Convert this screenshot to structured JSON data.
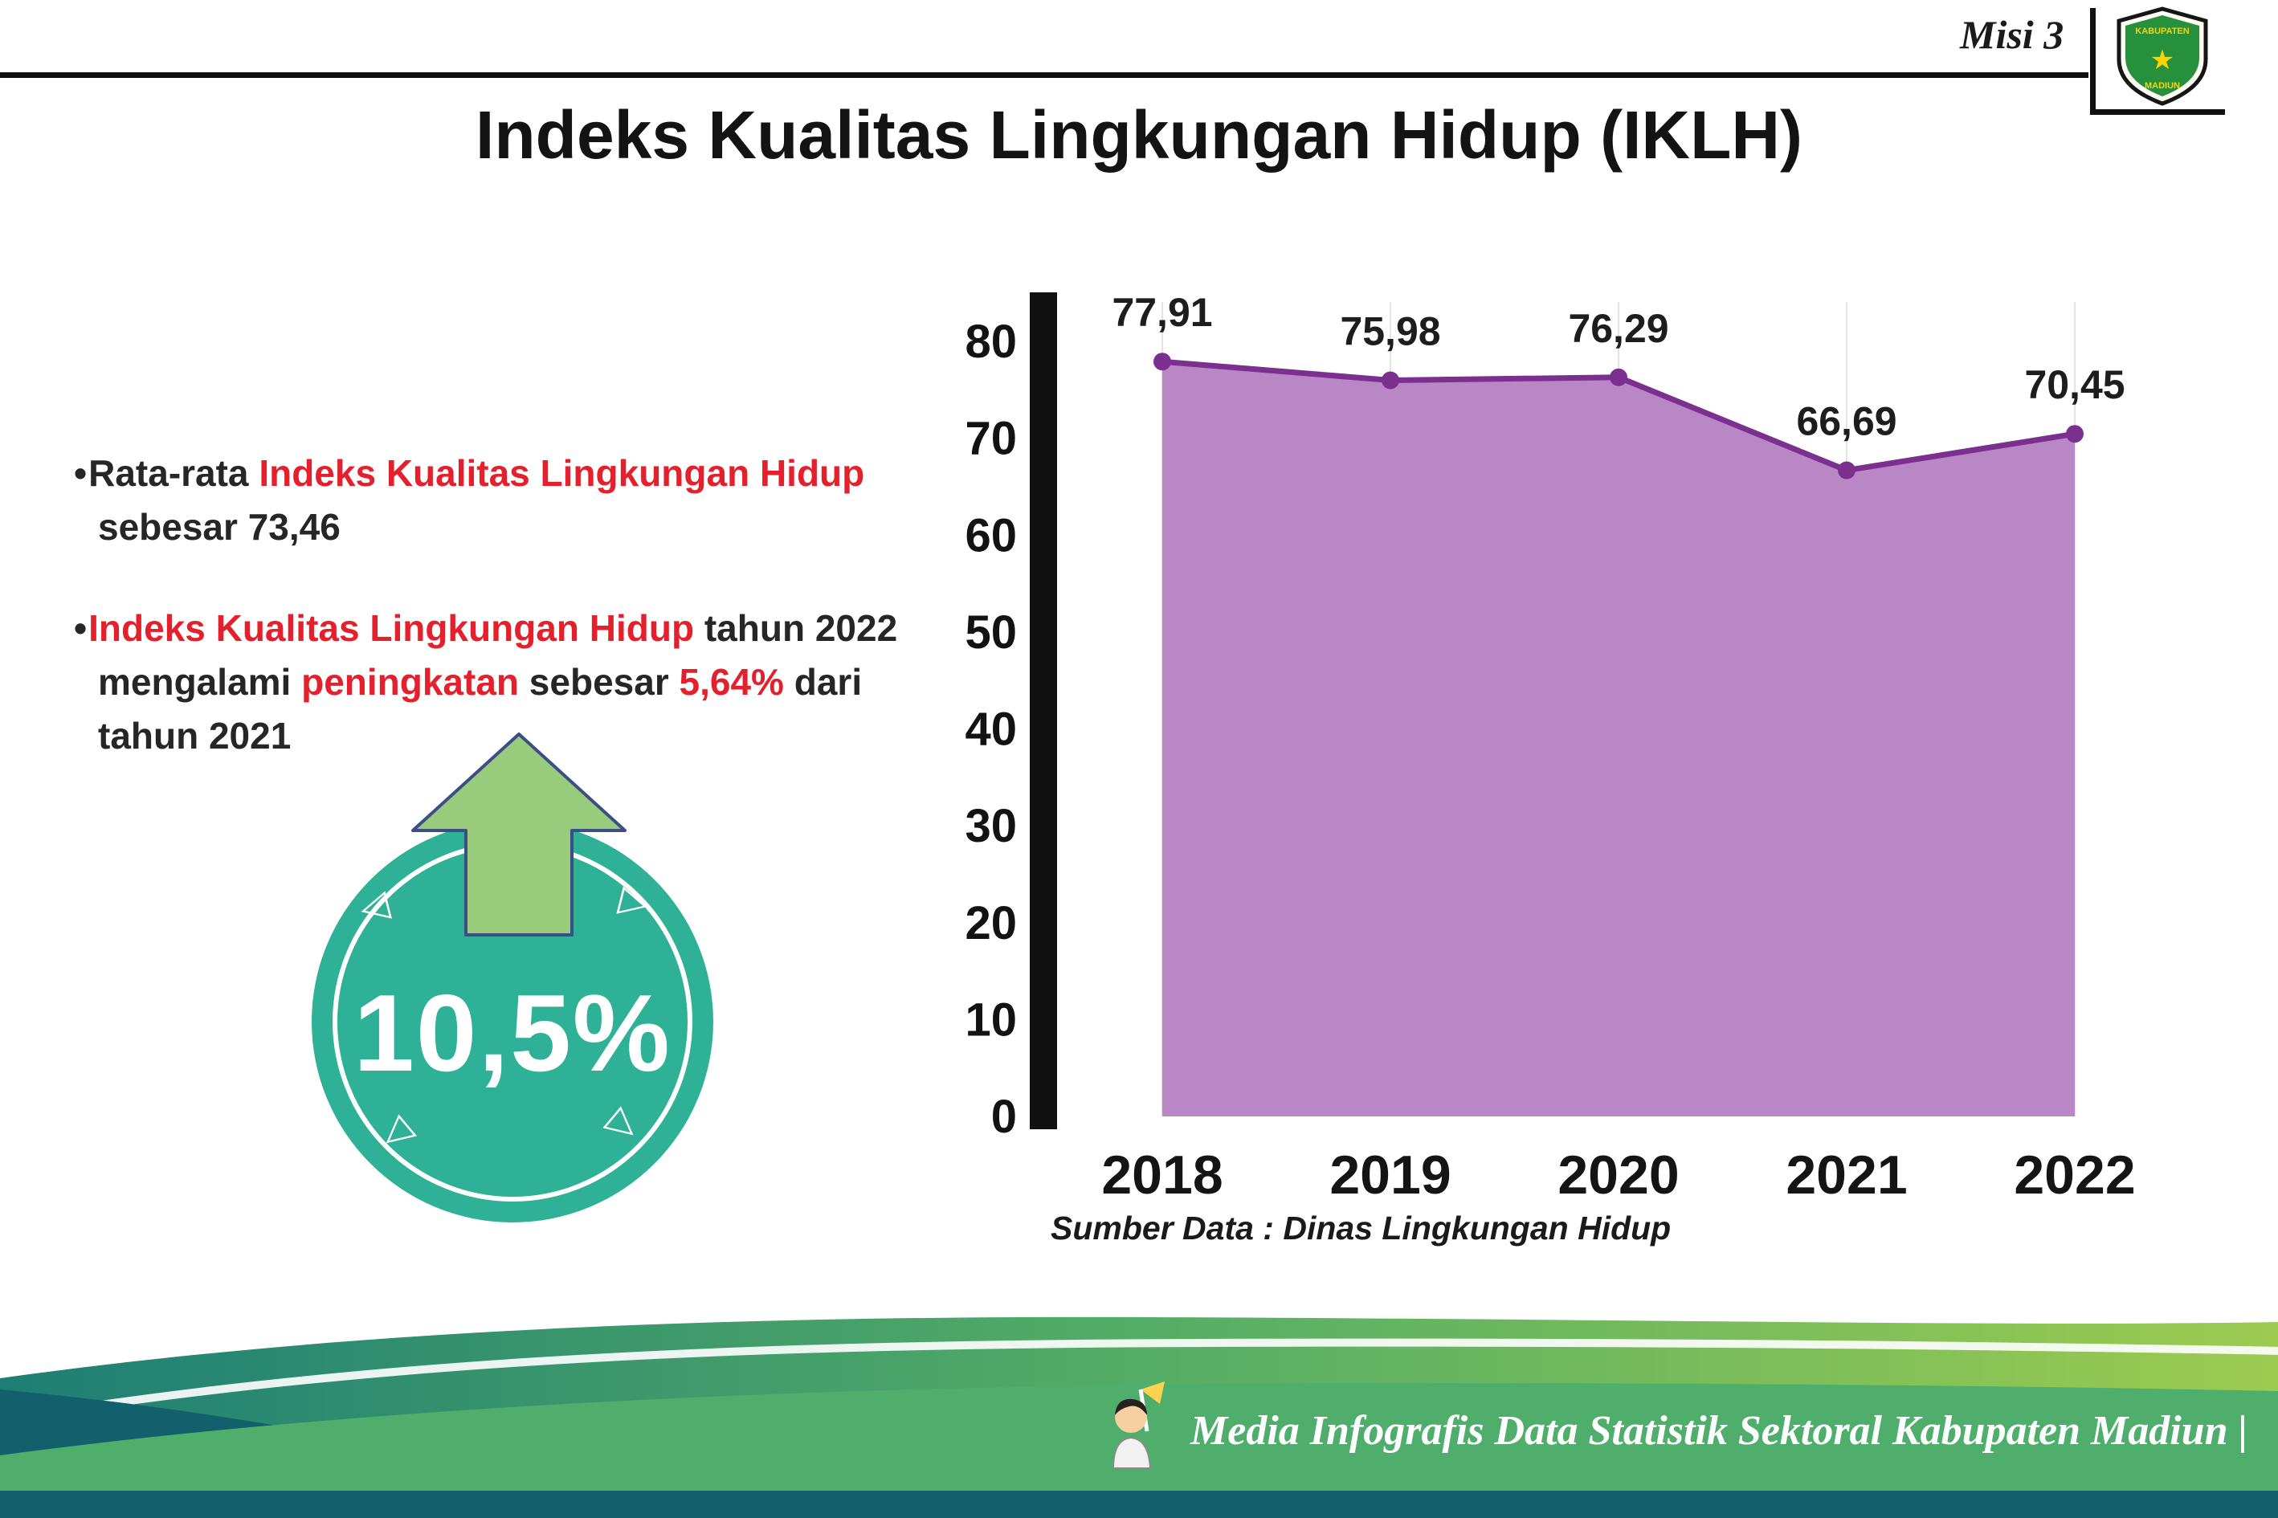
{
  "header": {
    "misi_label": "Misi 3",
    "title": "Indeks Kualitas Lingkungan Hidup (IKLH)",
    "logo": {
      "kabupaten": "KABUPATEN",
      "madiun": "MADIUN"
    }
  },
  "bullets": [
    {
      "segments": [
        {
          "t": "Rata-rata ",
          "c": "dark"
        },
        {
          "t": "Indeks Kualitas Lingkungan Hidup",
          "c": "red"
        },
        {
          "t": " sebesar 73,46",
          "c": "dark"
        }
      ]
    },
    {
      "segments": [
        {
          "t": "Indeks Kualitas Lingkungan Hidup",
          "c": "red"
        },
        {
          "t": " tahun 2022 mengalami ",
          "c": "dark"
        },
        {
          "t": "peningkatan",
          "c": "red"
        },
        {
          "t": " sebesar ",
          "c": "dark"
        },
        {
          "t": "5,64%",
          "c": "red"
        },
        {
          "t": " dari tahun 2021",
          "c": "dark"
        }
      ]
    }
  ],
  "badge": {
    "value": "10,5%",
    "circle_color": "#2eb197",
    "arrow_color": "#98cb7c"
  },
  "chart_data": {
    "type": "area",
    "title": "Indeks Kualitas Lingkungan Hidup (IKLH)",
    "categories": [
      "2018",
      "2019",
      "2020",
      "2021",
      "2022"
    ],
    "values": [
      77.91,
      75.98,
      76.29,
      66.69,
      70.45
    ],
    "point_labels": [
      "77,91",
      "75,98",
      "76,29",
      "66,69",
      "70,45"
    ],
    "ylim": [
      0,
      80
    ],
    "ytick_step": 10,
    "grid": "faint-vertical",
    "legend": "none",
    "line_color": "#7b2f8e",
    "fill_color": "#b987c6",
    "axis_color": "#101010",
    "source": "Sumber Data : Dinas Lingkungan Hidup"
  },
  "footer": {
    "text": "Media Infografis Data Statistik Sektoral Kabupaten Madiun |",
    "band_color": "#4fae6b",
    "strip_color": "#11606b"
  }
}
